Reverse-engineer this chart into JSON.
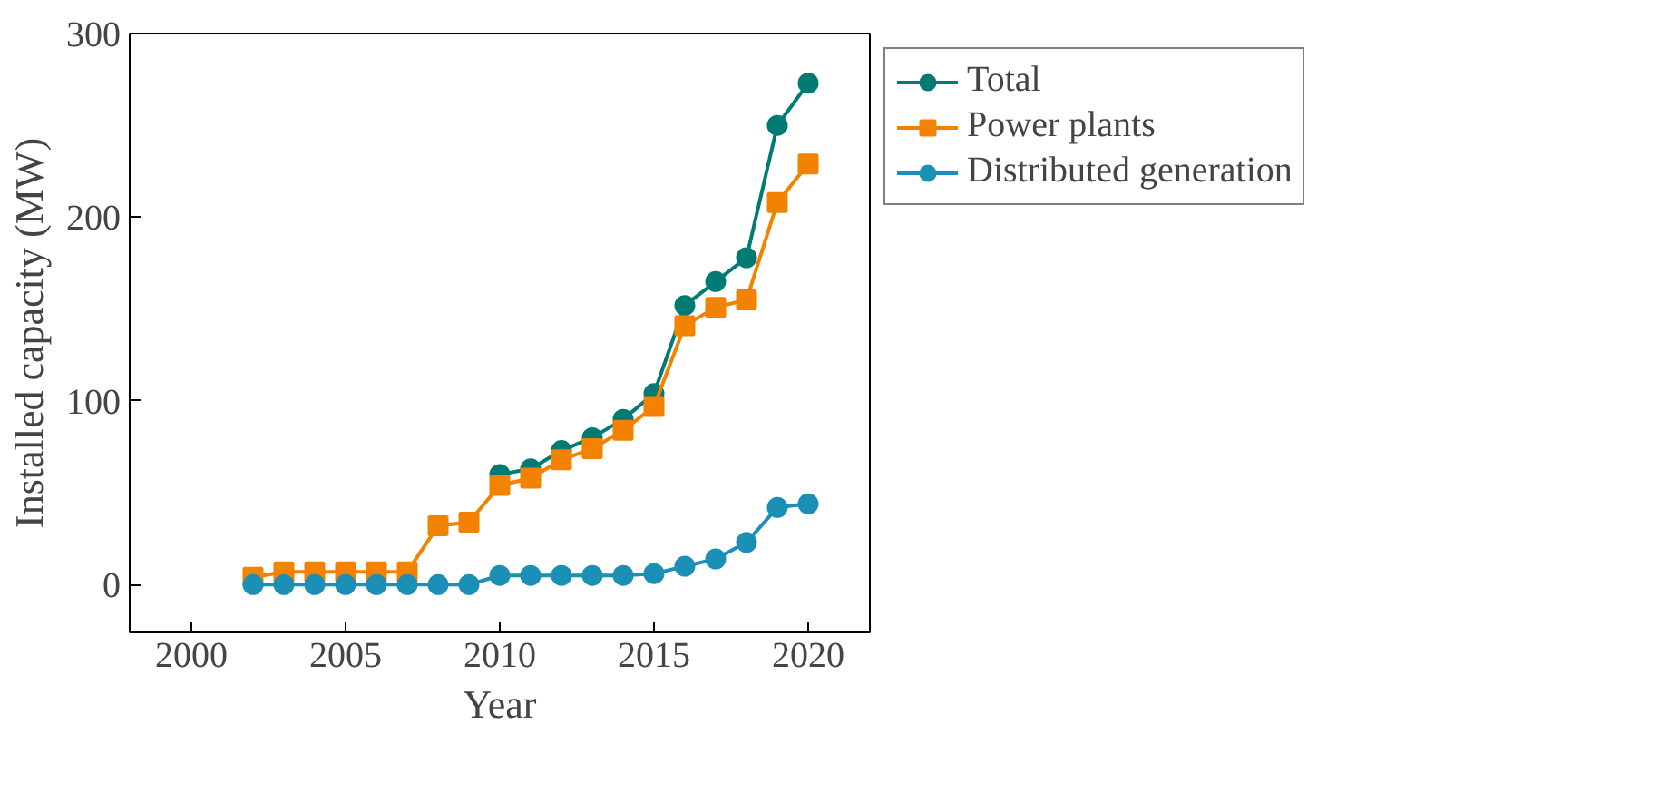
{
  "chart_data": {
    "type": "line",
    "xlabel": "Year",
    "ylabel": "Installed capacity (MW)",
    "x": [
      2002,
      2003,
      2004,
      2005,
      2006,
      2007,
      2008,
      2009,
      2010,
      2011,
      2012,
      2013,
      2014,
      2015,
      2016,
      2017,
      2018,
      2019,
      2020
    ],
    "series": [
      {
        "name": "Total",
        "color": "#007b73",
        "marker": "circle",
        "values": [
          null,
          null,
          null,
          null,
          null,
          null,
          null,
          null,
          60,
          63,
          73,
          80,
          90,
          104,
          152,
          165,
          178,
          250,
          273
        ]
      },
      {
        "name": "Power plants",
        "color": "#f28200",
        "marker": "square",
        "values": [
          4,
          7,
          7,
          7,
          7,
          7,
          32,
          34,
          54,
          58,
          68,
          74,
          84,
          97,
          141,
          151,
          155,
          208,
          229
        ]
      },
      {
        "name": "Distributed generation",
        "color": "#1b8fb5",
        "marker": "circle",
        "values": [
          0,
          0,
          0,
          0,
          0,
          0,
          0,
          0,
          5,
          5,
          5,
          5,
          5,
          6,
          10,
          14,
          23,
          42,
          44
        ]
      }
    ],
    "xlim": [
      1998,
      2022
    ],
    "ylim": [
      -26,
      300
    ],
    "xticks": [
      2000,
      2005,
      2010,
      2015,
      2020
    ],
    "yticks": [
      0,
      100,
      200,
      300
    ],
    "grid": false,
    "legend": "top right"
  }
}
